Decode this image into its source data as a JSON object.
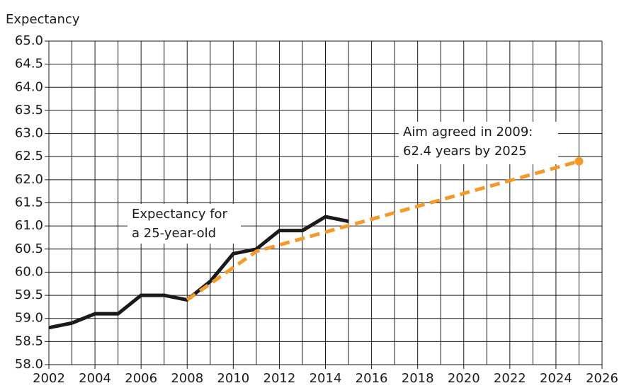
{
  "chart_data": {
    "type": "line",
    "y_label": "Expectancy",
    "xlim": [
      2002,
      2026
    ],
    "xticks": [
      2002,
      2004,
      2006,
      2008,
      2010,
      2012,
      2014,
      2016,
      2018,
      2020,
      2022,
      2024,
      2026
    ],
    "xgrid": [
      2002,
      2003,
      2004,
      2005,
      2006,
      2007,
      2008,
      2009,
      2010,
      2011,
      2012,
      2013,
      2014,
      2015,
      2016,
      2017,
      2018,
      2019,
      2020,
      2021,
      2022,
      2023,
      2024,
      2025,
      2026
    ],
    "ylim": [
      58.0,
      65.0
    ],
    "yticks": [
      {
        "value": 58.0,
        "label": "58.0"
      },
      {
        "value": 58.5,
        "label": "58.5"
      },
      {
        "value": 59.0,
        "label": "59.0"
      },
      {
        "value": 59.5,
        "label": "59.5"
      },
      {
        "value": 60.0,
        "label": "60.0"
      },
      {
        "value": 60.5,
        "label": "60.5"
      },
      {
        "value": 61.0,
        "label": "61.0"
      },
      {
        "value": 61.5,
        "label": "61.5"
      },
      {
        "value": 62.0,
        "label": "62.0"
      },
      {
        "value": 62.5,
        "label": "62.5"
      },
      {
        "value": 63.0,
        "label": "63.0"
      },
      {
        "value": 63.5,
        "label": "63.5"
      },
      {
        "value": 64.0,
        "label": "64.0"
      },
      {
        "value": 64.5,
        "label": "64.5"
      },
      {
        "value": 65.0,
        "label": "65.0"
      }
    ],
    "grid": true,
    "series": [
      {
        "color": "#1a1a1a",
        "dashed": false,
        "x": [
          2002,
          2003,
          2004,
          2005,
          2006,
          2007,
          2008,
          2009,
          2010,
          2011,
          2012,
          2013,
          2014,
          2015
        ],
        "values": [
          58.8,
          58.9,
          59.1,
          59.1,
          59.5,
          59.5,
          59.4,
          59.8,
          60.4,
          60.5,
          60.9,
          60.9,
          61.2,
          61.1
        ]
      },
      {
        "color": "#f39a2d",
        "dashed": true,
        "x": [
          2008,
          2009,
          2010,
          2011,
          2025
        ],
        "values": [
          59.4,
          59.75,
          60.1,
          60.45,
          62.4
        ]
      }
    ],
    "annotations": [
      {
        "lines": [
          "Expectancy for",
          "a 25-year-old"
        ]
      },
      {
        "lines": [
          "Aim agreed in 2009:",
          "62.4 years by 2025"
        ]
      }
    ]
  }
}
